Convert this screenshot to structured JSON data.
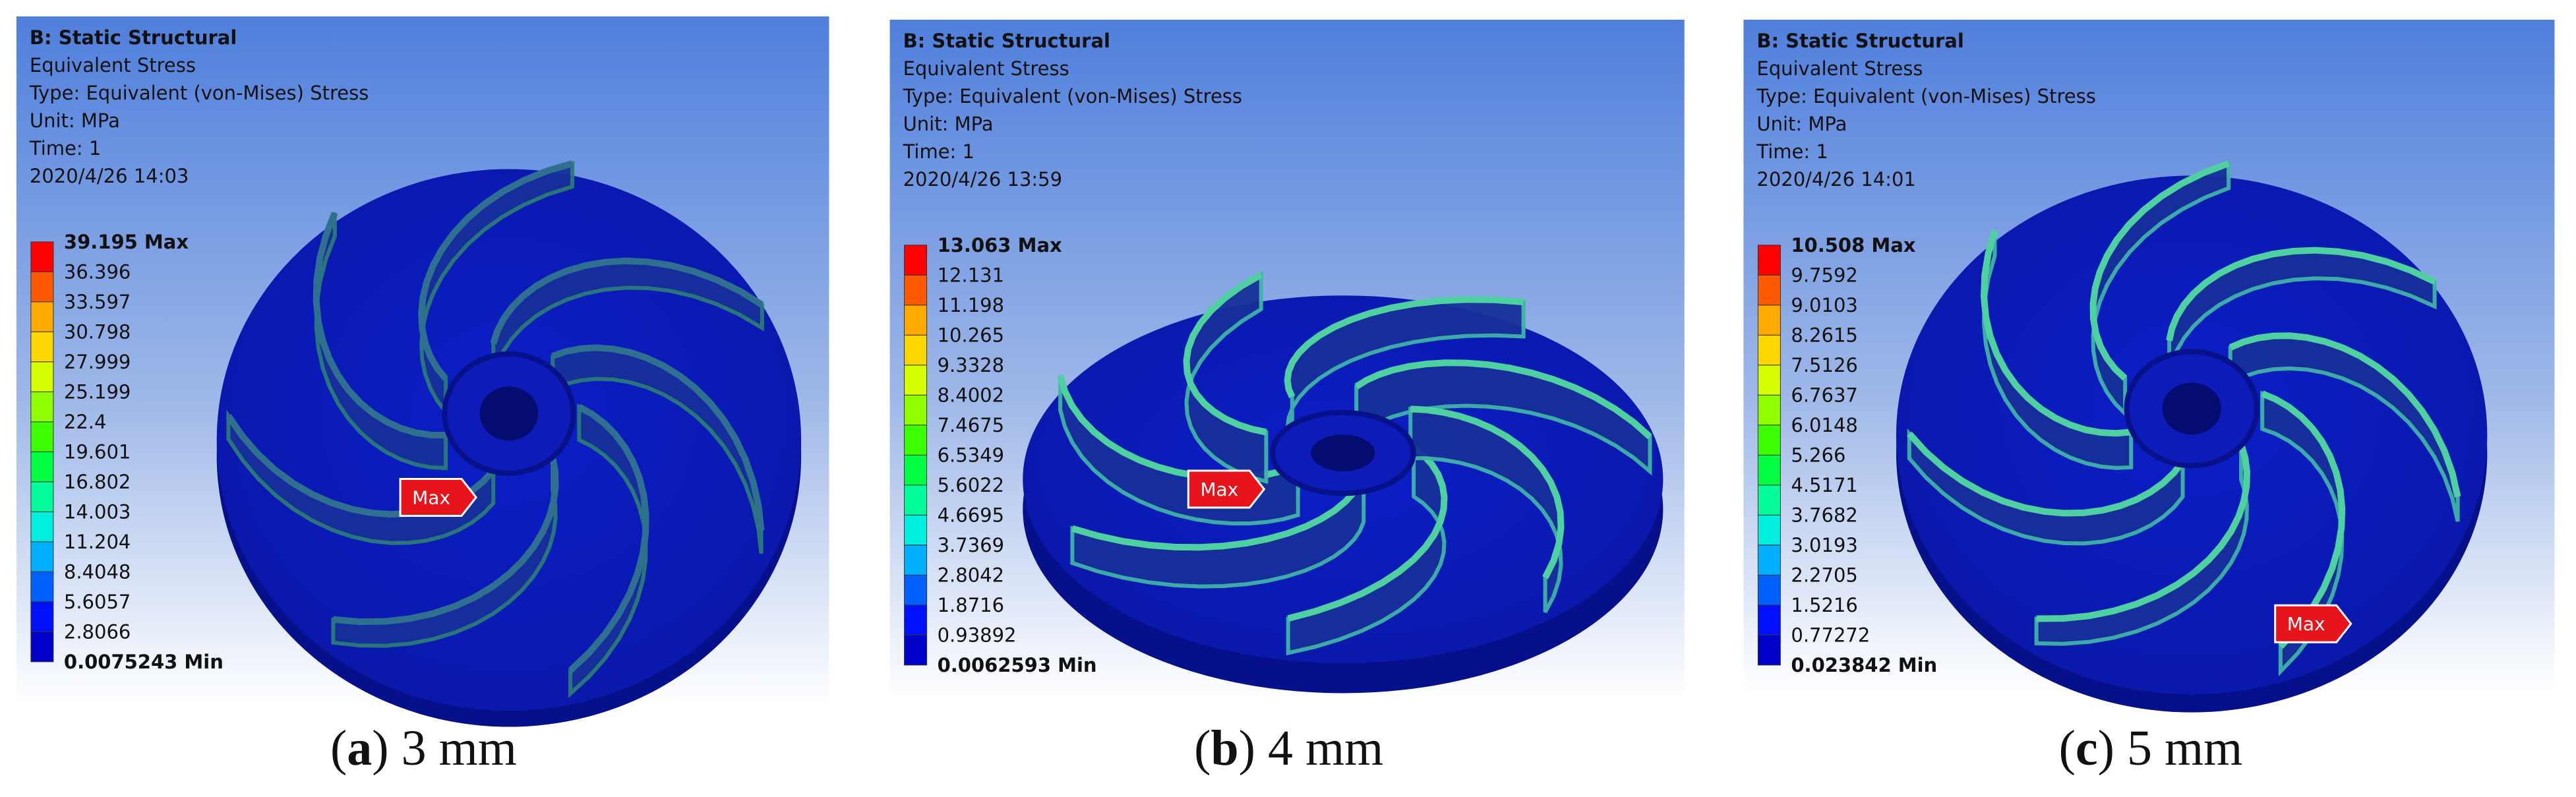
{
  "panels": [
    {
      "header": [
        "B: Static Structural",
        "Equivalent Stress",
        "Type: Equivalent (von-Mises) Stress",
        "Unit: MPa",
        "Time: 1",
        "2020/4/26 14:03"
      ],
      "legend": [
        "39.195 Max",
        "36.396",
        "33.597",
        "30.798",
        "27.999",
        "25.199",
        "22.4",
        "19.601",
        "16.802",
        "14.003",
        "11.204",
        "8.4048",
        "5.6057",
        "2.8066",
        "0.0075243 Min"
      ],
      "marker": "Max",
      "caption": [
        {
          "text": "(",
          "bold": false
        },
        {
          "text": "a",
          "bold": true
        },
        {
          "text": ") 3 mm",
          "bold": false
        }
      ]
    },
    {
      "header": [
        "B: Static Structural",
        "Equivalent Stress",
        "Type: Equivalent (von-Mises) Stress",
        "Unit: MPa",
        "Time: 1",
        "2020/4/26 13:59"
      ],
      "legend": [
        "13.063 Max",
        "12.131",
        "11.198",
        "10.265",
        "9.3328",
        "8.4002",
        "7.4675",
        "6.5349",
        "5.6022",
        "4.6695",
        "3.7369",
        "2.8042",
        "1.8716",
        "0.93892",
        "0.0062593 Min"
      ],
      "marker": "Max",
      "caption": [
        {
          "text": "(",
          "bold": false
        },
        {
          "text": "b",
          "bold": true
        },
        {
          "text": ") 4 mm",
          "bold": false
        }
      ]
    },
    {
      "header": [
        "B: Static Structural",
        "Equivalent Stress",
        "Type: Equivalent (von-Mises) Stress",
        "Unit: MPa",
        "Time: 1",
        "2020/4/26 14:01"
      ],
      "legend": [
        "10.508 Max",
        "9.7592",
        "9.0103",
        "8.2615",
        "7.5126",
        "6.7637",
        "6.0148",
        "5.266",
        "4.5171",
        "3.7682",
        "3.0193",
        "2.2705",
        "1.5216",
        "0.77272",
        "0.023842 Min"
      ],
      "marker": "Max",
      "caption": [
        {
          "text": "(",
          "bold": false
        },
        {
          "text": "c",
          "bold": true
        },
        {
          "text": ") 5 mm",
          "bold": false
        }
      ]
    }
  ]
}
